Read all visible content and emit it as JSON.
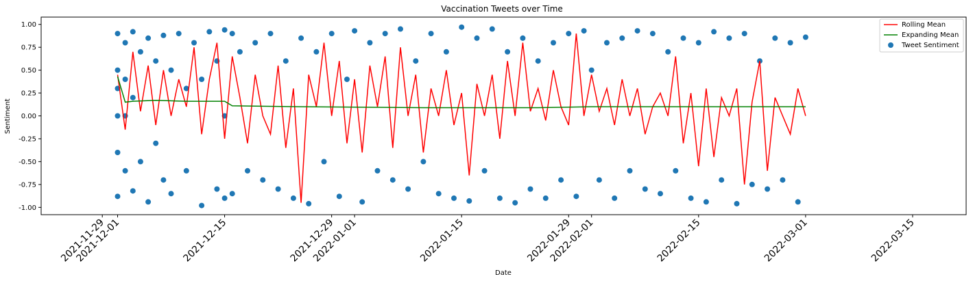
{
  "chart_data": {
    "type": "scatter",
    "title": "Vaccination Tweets over Time",
    "xlabel": "Date",
    "ylabel": "Sentiment",
    "xlim": [
      "2021-11-21",
      "2022-03-22"
    ],
    "ylim": [
      -1.08,
      1.08
    ],
    "y_ticks": [
      "-1.00",
      "-0.75",
      "-0.50",
      "-0.25",
      "0.00",
      "0.25",
      "0.50",
      "0.75",
      "1.00"
    ],
    "x_ticks": [
      "2021-11-29",
      "2021-12-01",
      "2021-12-15",
      "2021-12-29",
      "2022-01-01",
      "2022-01-15",
      "2022-01-29",
      "2022-02-01",
      "2022-02-15",
      "2022-03-01",
      "2022-03-15"
    ],
    "grid": false,
    "legend_position": "top-right",
    "legend": [
      "Rolling Mean",
      "Expanding Mean",
      "Tweet Sentiment"
    ],
    "colors": {
      "rolling": "#ff0000",
      "expanding": "#008000",
      "scatter": "#1f77b4"
    },
    "series": [
      {
        "name": "Tweet Sentiment",
        "type": "scatter",
        "x": [
          "2021-12-01",
          "2021-12-01",
          "2021-12-01",
          "2021-12-01",
          "2021-12-01",
          "2021-12-01",
          "2021-12-02",
          "2021-12-02",
          "2021-12-02",
          "2021-12-02",
          "2021-12-03",
          "2021-12-03",
          "2021-12-03",
          "2021-12-04",
          "2021-12-04",
          "2021-12-05",
          "2021-12-05",
          "2021-12-06",
          "2021-12-06",
          "2021-12-07",
          "2021-12-07",
          "2021-12-08",
          "2021-12-08",
          "2021-12-09",
          "2021-12-10",
          "2021-12-10",
          "2021-12-11",
          "2021-12-12",
          "2021-12-12",
          "2021-12-13",
          "2021-12-14",
          "2021-12-14",
          "2021-12-15",
          "2021-12-15",
          "2021-12-15",
          "2021-12-16",
          "2021-12-16",
          "2021-12-17",
          "2021-12-18",
          "2021-12-19",
          "2021-12-20",
          "2021-12-21",
          "2021-12-22",
          "2021-12-23",
          "2021-12-24",
          "2021-12-25",
          "2021-12-26",
          "2021-12-27",
          "2021-12-28",
          "2021-12-29",
          "2021-12-30",
          "2021-12-31",
          "2022-01-01",
          "2022-01-02",
          "2022-01-03",
          "2022-01-04",
          "2022-01-05",
          "2022-01-06",
          "2022-01-07",
          "2022-01-08",
          "2022-01-09",
          "2022-01-10",
          "2022-01-11",
          "2022-01-12",
          "2022-01-13",
          "2022-01-14",
          "2022-01-15",
          "2022-01-16",
          "2022-01-17",
          "2022-01-18",
          "2022-01-19",
          "2022-01-20",
          "2022-01-21",
          "2022-01-22",
          "2022-01-23",
          "2022-01-24",
          "2022-01-25",
          "2022-01-26",
          "2022-01-27",
          "2022-01-28",
          "2022-01-29",
          "2022-01-30",
          "2022-01-31",
          "2022-02-01",
          "2022-02-02",
          "2022-02-03",
          "2022-02-04",
          "2022-02-05",
          "2022-02-06",
          "2022-02-07",
          "2022-02-08",
          "2022-02-09",
          "2022-02-10",
          "2022-02-11",
          "2022-02-12",
          "2022-02-13",
          "2022-02-14",
          "2022-02-15",
          "2022-02-16",
          "2022-02-17",
          "2022-02-18",
          "2022-02-19",
          "2022-02-20",
          "2022-02-21",
          "2022-02-22",
          "2022-02-23",
          "2022-02-24",
          "2022-02-25",
          "2022-02-26",
          "2022-02-27",
          "2022-02-28",
          "2022-03-01"
        ],
        "y": [
          0.9,
          -0.88,
          0.5,
          0.0,
          -0.4,
          0.3,
          0.8,
          -0.6,
          0.0,
          0.4,
          0.92,
          -0.82,
          0.2,
          0.7,
          -0.5,
          0.85,
          -0.94,
          0.6,
          -0.3,
          0.88,
          -0.7,
          0.5,
          -0.85,
          0.9,
          0.3,
          -0.6,
          0.8,
          -0.98,
          0.4,
          0.92,
          0.6,
          -0.8,
          0.94,
          -0.9,
          0.0,
          0.9,
          -0.85,
          0.7,
          -0.6,
          0.8,
          -0.7,
          0.9,
          -0.8,
          0.6,
          -0.9,
          0.85,
          -0.96,
          0.7,
          -0.5,
          0.9,
          -0.88,
          0.4,
          0.93,
          -0.94,
          0.8,
          -0.6,
          0.9,
          -0.7,
          0.95,
          -0.8,
          0.6,
          -0.5,
          0.9,
          -0.85,
          0.7,
          -0.9,
          0.97,
          -0.93,
          0.85,
          -0.6,
          0.95,
          -0.9,
          0.7,
          -0.95,
          0.85,
          -0.8,
          0.6,
          -0.9,
          0.8,
          -0.7,
          0.9,
          -0.88,
          0.93,
          0.5,
          -0.7,
          0.8,
          -0.9,
          0.85,
          -0.6,
          0.93,
          -0.8,
          0.9,
          -0.85,
          0.7,
          -0.6,
          0.85,
          -0.9,
          0.8,
          -0.94,
          0.92,
          -0.7,
          0.85,
          -0.96,
          0.9,
          -0.75,
          0.6,
          -0.8,
          0.85,
          -0.7,
          0.8,
          -0.94,
          0.86
        ]
      },
      {
        "name": "Rolling Mean",
        "type": "line",
        "x": [
          "2021-12-01",
          "2021-12-02",
          "2021-12-03",
          "2021-12-04",
          "2021-12-05",
          "2021-12-06",
          "2021-12-07",
          "2021-12-08",
          "2021-12-09",
          "2021-12-10",
          "2021-12-11",
          "2021-12-12",
          "2021-12-13",
          "2021-12-14",
          "2021-12-15",
          "2021-12-16",
          "2021-12-17",
          "2021-12-18",
          "2021-12-19",
          "2021-12-20",
          "2021-12-21",
          "2021-12-22",
          "2021-12-23",
          "2021-12-24",
          "2021-12-25",
          "2021-12-26",
          "2021-12-27",
          "2021-12-28",
          "2021-12-29",
          "2021-12-30",
          "2021-12-31",
          "2022-01-01",
          "2022-01-02",
          "2022-01-03",
          "2022-01-04",
          "2022-01-05",
          "2022-01-06",
          "2022-01-07",
          "2022-01-08",
          "2022-01-09",
          "2022-01-10",
          "2022-01-11",
          "2022-01-12",
          "2022-01-13",
          "2022-01-14",
          "2022-01-15",
          "2022-01-16",
          "2022-01-17",
          "2022-01-18",
          "2022-01-19",
          "2022-01-20",
          "2022-01-21",
          "2022-01-22",
          "2022-01-23",
          "2022-01-24",
          "2022-01-25",
          "2022-01-26",
          "2022-01-27",
          "2022-01-28",
          "2022-01-29",
          "2022-01-30",
          "2022-01-31",
          "2022-02-01",
          "2022-02-02",
          "2022-02-03",
          "2022-02-04",
          "2022-02-05",
          "2022-02-06",
          "2022-02-07",
          "2022-02-08",
          "2022-02-09",
          "2022-02-10",
          "2022-02-11",
          "2022-02-12",
          "2022-02-13",
          "2022-02-14",
          "2022-02-15",
          "2022-02-16",
          "2022-02-17",
          "2022-02-18",
          "2022-02-19",
          "2022-02-20",
          "2022-02-21",
          "2022-02-22",
          "2022-02-23",
          "2022-02-24",
          "2022-02-25",
          "2022-02-26",
          "2022-02-27",
          "2022-02-28",
          "2022-03-01"
        ],
        "y": [
          0.45,
          -0.15,
          0.7,
          0.05,
          0.55,
          -0.1,
          0.5,
          0.0,
          0.4,
          0.1,
          0.75,
          -0.2,
          0.4,
          0.8,
          -0.25,
          0.65,
          0.2,
          -0.3,
          0.45,
          0.0,
          -0.2,
          0.55,
          -0.35,
          0.3,
          -0.95,
          0.45,
          0.1,
          0.8,
          0.0,
          0.6,
          -0.3,
          0.4,
          -0.4,
          0.55,
          0.1,
          0.65,
          -0.35,
          0.75,
          0.0,
          0.45,
          -0.4,
          0.3,
          0.0,
          0.5,
          -0.1,
          0.25,
          -0.65,
          0.35,
          0.0,
          0.45,
          -0.25,
          0.6,
          0.0,
          0.8,
          0.05,
          0.3,
          -0.05,
          0.5,
          0.1,
          -0.1,
          0.9,
          0.0,
          0.45,
          0.05,
          0.3,
          -0.1,
          0.4,
          0.0,
          0.3,
          -0.2,
          0.1,
          0.25,
          0.0,
          0.65,
          -0.3,
          0.25,
          -0.55,
          0.3,
          -0.45,
          0.2,
          0.0,
          0.3,
          -0.75,
          0.15,
          0.6,
          -0.6,
          0.2,
          0.0,
          -0.2,
          0.3,
          0.0
        ]
      },
      {
        "name": "Expanding Mean",
        "type": "line",
        "x": [
          "2021-12-01",
          "2021-12-02",
          "2021-12-03",
          "2021-12-06",
          "2021-12-10",
          "2021-12-15",
          "2021-12-16",
          "2021-12-25",
          "2022-01-10",
          "2022-01-25",
          "2022-02-01",
          "2022-02-15",
          "2022-03-01"
        ],
        "y": [
          0.43,
          0.15,
          0.16,
          0.17,
          0.16,
          0.16,
          0.11,
          0.1,
          0.09,
          0.09,
          0.1,
          0.1,
          0.1
        ]
      }
    ]
  }
}
